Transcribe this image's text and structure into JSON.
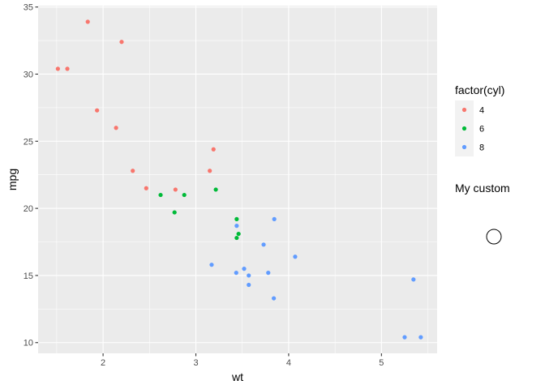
{
  "chart_data": {
    "type": "scatter",
    "xlabel": "wt",
    "ylabel": "mpg",
    "xlim": [
      1.3,
      5.6
    ],
    "ylim": [
      9.2,
      35.1
    ],
    "x_ticks": [
      2,
      3,
      4,
      5
    ],
    "y_ticks": [
      10,
      15,
      20,
      25,
      30,
      35
    ],
    "x_tick_labels": [
      "2",
      "3",
      "4",
      "5"
    ],
    "y_tick_labels": [
      "10",
      "15",
      "20",
      "25",
      "30",
      "35"
    ],
    "grid": true,
    "legend": {
      "title": "factor(cyl)",
      "placement": "right",
      "entries": [
        "4",
        "6",
        "8"
      ]
    },
    "custom_legend": {
      "title": "My custom"
    },
    "series": [
      {
        "name": "4",
        "color": "#F8766D",
        "points": [
          [
            2.32,
            22.8
          ],
          [
            3.19,
            24.4
          ],
          [
            3.15,
            22.8
          ],
          [
            2.2,
            32.4
          ],
          [
            1.615,
            30.4
          ],
          [
            1.835,
            33.9
          ],
          [
            2.465,
            21.5
          ],
          [
            1.935,
            27.3
          ],
          [
            2.14,
            26.0
          ],
          [
            1.513,
            30.4
          ],
          [
            2.78,
            21.4
          ]
        ]
      },
      {
        "name": "6",
        "color": "#00BA38",
        "points": [
          [
            2.62,
            21.0
          ],
          [
            2.875,
            21.0
          ],
          [
            3.215,
            21.4
          ],
          [
            3.46,
            18.1
          ],
          [
            3.44,
            19.2
          ],
          [
            3.44,
            17.8
          ],
          [
            2.77,
            19.7
          ]
        ]
      },
      {
        "name": "8",
        "color": "#619CFF",
        "points": [
          [
            3.44,
            18.7
          ],
          [
            3.57,
            14.3
          ],
          [
            4.07,
            16.4
          ],
          [
            3.73,
            17.3
          ],
          [
            3.78,
            15.2
          ],
          [
            5.25,
            10.4
          ],
          [
            5.424,
            10.4
          ],
          [
            5.345,
            14.7
          ],
          [
            3.52,
            15.5
          ],
          [
            3.435,
            15.2
          ],
          [
            3.84,
            13.3
          ],
          [
            3.845,
            19.2
          ],
          [
            3.17,
            15.8
          ],
          [
            3.57,
            15.0
          ]
        ]
      }
    ]
  }
}
